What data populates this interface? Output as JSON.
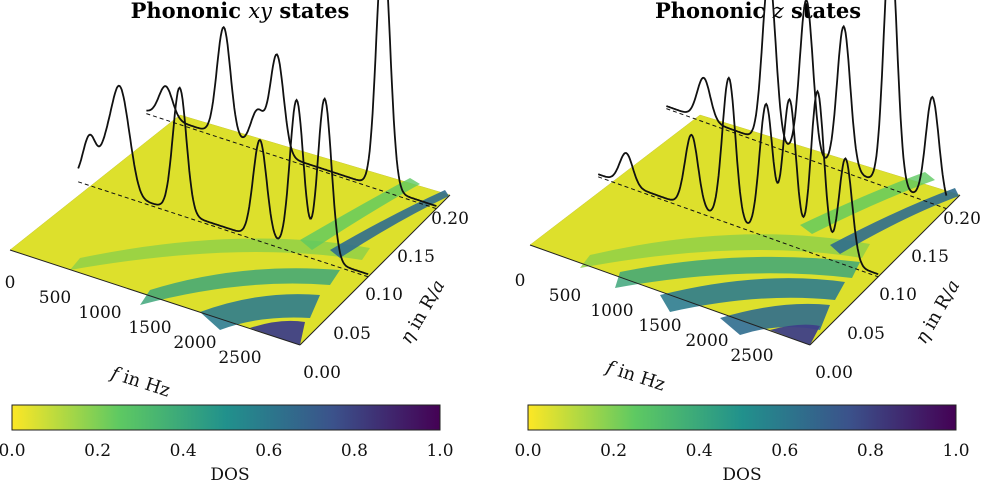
{
  "chart_data": [
    {
      "type": "heatmap",
      "title_prefix": "Phononic",
      "title_var": "xy",
      "title_suffix": "states",
      "xlabel_var": "f",
      "xlabel_text": "in Hz",
      "ylabel_var": "η",
      "ylabel_text": "in R/",
      "ylabel_var2": "a",
      "zlabel": "DOS",
      "x_ticks": [
        "0",
        "500",
        "1000",
        "1500",
        "2000",
        "2500"
      ],
      "x_range": [
        0,
        3000
      ],
      "y_ticks": [
        "0.00",
        "0.05",
        "0.10",
        "0.15",
        "0.20"
      ],
      "y_range": [
        0,
        0.22
      ],
      "colorbar_ticks": [
        "0.0",
        "0.2",
        "0.4",
        "0.6",
        "0.8",
        "1.0"
      ],
      "colorbar_range": [
        0,
        1
      ],
      "slices": [
        {
          "eta": 0.1,
          "peaks": [
            [
              120,
              0.18
            ],
            [
              300,
              0.16
            ],
            [
              420,
              0.32
            ],
            [
              520,
              0.15
            ],
            [
              1050,
              0.48
            ],
            [
              1880,
              0.38
            ],
            [
              2260,
              0.58
            ],
            [
              2550,
              0.62
            ]
          ]
        },
        {
          "eta": 0.2,
          "peaks": [
            [
              200,
              0.12
            ],
            [
              800,
              0.42
            ],
            [
              1150,
              0.14
            ],
            [
              1350,
              0.38
            ],
            [
              2450,
              0.95
            ]
          ]
        }
      ]
    },
    {
      "type": "heatmap",
      "title_prefix": "Phononic",
      "title_var": "z",
      "title_suffix": "states",
      "xlabel_var": "f",
      "xlabel_text": "in Hz",
      "ylabel_var": "η",
      "ylabel_text": "in R/",
      "ylabel_var2": "a",
      "zlabel": "DOS",
      "x_ticks": [
        "0",
        "500",
        "1000",
        "1500",
        "2000",
        "2500"
      ],
      "x_range": [
        0,
        3000
      ],
      "y_ticks": [
        "0.00",
        "0.05",
        "0.10",
        "0.15",
        "0.20"
      ],
      "y_range": [
        0,
        0.22
      ],
      "colorbar_ticks": [
        "0.0",
        "0.2",
        "0.4",
        "0.6",
        "0.8",
        "1.0"
      ],
      "colorbar_range": [
        0,
        1
      ],
      "slices": [
        {
          "eta": 0.1,
          "peaks": [
            [
              300,
              0.12
            ],
            [
              1000,
              0.28
            ],
            [
              1400,
              0.55
            ],
            [
              1800,
              0.5
            ],
            [
              2050,
              0.55
            ],
            [
              2350,
              0.62
            ],
            [
              2650,
              0.4
            ]
          ]
        },
        {
          "eta": 0.2,
          "peaks": [
            [
              400,
              0.16
            ],
            [
              1100,
              0.65
            ],
            [
              1500,
              0.6
            ],
            [
              1900,
              0.55
            ],
            [
              2400,
              0.95
            ],
            [
              2850,
              0.4
            ]
          ]
        }
      ]
    }
  ],
  "colors": {
    "viridis": [
      "#440154",
      "#3b528b",
      "#21918c",
      "#5ec962",
      "#fde725"
    ]
  }
}
